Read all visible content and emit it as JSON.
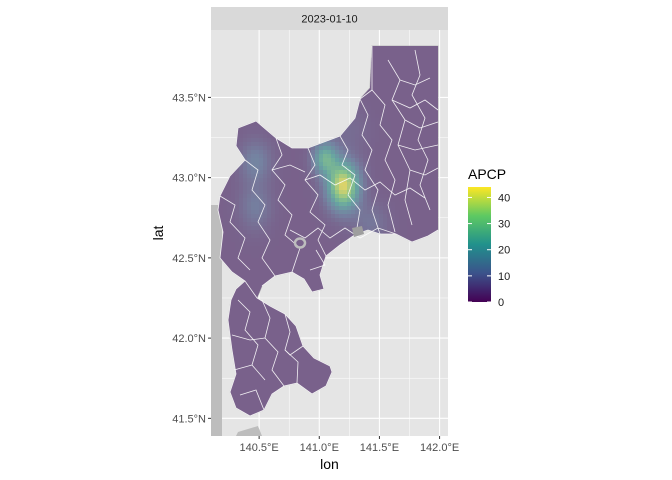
{
  "chart_data": {
    "type": "heatmap",
    "facet_label": "2023-01-10",
    "xlabel": "lon",
    "ylabel": "lat",
    "x_ticks": [
      {
        "value": 140.5,
        "label": "140.5°E"
      },
      {
        "value": 141.0,
        "label": "141.0°E"
      },
      {
        "value": 141.5,
        "label": "141.5°E"
      },
      {
        "value": 142.0,
        "label": "142.0°E"
      }
    ],
    "y_ticks": [
      {
        "value": 41.5,
        "label": "41.5°N"
      },
      {
        "value": 42.0,
        "label": "42.0°N"
      },
      {
        "value": 42.5,
        "label": "42.5°N"
      },
      {
        "value": 43.0,
        "label": "43.0°N"
      },
      {
        "value": 43.5,
        "label": "43.5°N"
      }
    ],
    "xlim": [
      140.1,
      142.07
    ],
    "ylim": [
      41.39,
      43.92
    ],
    "colorbar": {
      "title": "APCP",
      "range": [
        0,
        44
      ],
      "ticks": [
        0,
        10,
        20,
        30,
        40
      ],
      "palette": [
        "#440154",
        "#3b528b",
        "#21918c",
        "#5ec962",
        "#fde725"
      ]
    },
    "colors": {
      "panel_background": "#e5e5e5",
      "grid": "#ffffff",
      "strip_background": "#d9d9d9",
      "land_outline": "#bdbdbd",
      "boundary_lines": "#ffffff"
    },
    "field": {
      "base_value": 3,
      "peaks": [
        {
          "lon": 141.2,
          "lat": 42.95,
          "value": 44,
          "spread_lon": 0.09,
          "spread_lat": 0.1
        },
        {
          "lon": 141.05,
          "lat": 43.12,
          "value": 26,
          "spread_lon": 0.07,
          "spread_lat": 0.07
        },
        {
          "lon": 140.47,
          "lat": 43.1,
          "value": 13,
          "spread_lon": 0.09,
          "spread_lat": 0.09
        },
        {
          "lon": 140.47,
          "lat": 42.82,
          "value": 11,
          "spread_lon": 0.09,
          "spread_lat": 0.1
        },
        {
          "lon": 141.43,
          "lat": 42.72,
          "value": 9,
          "spread_lon": 0.1,
          "spread_lat": 0.08
        },
        {
          "lon": 141.25,
          "lat": 43.3,
          "value": 6,
          "spread_lon": 0.12,
          "spread_lat": 0.1
        }
      ]
    }
  }
}
